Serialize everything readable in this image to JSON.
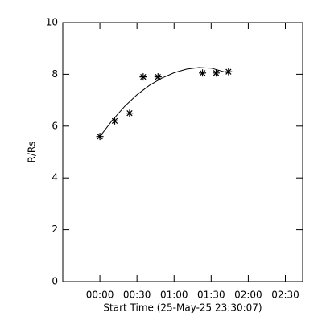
{
  "chart_data": {
    "type": "scatter",
    "xlabel": "Start Time (25-May-25 23:30:07)",
    "ylabel": "R/Rs",
    "x": [
      0,
      12,
      24,
      35,
      47,
      83,
      94,
      104
    ],
    "values": [
      5.6,
      6.2,
      6.5,
      7.9,
      7.9,
      8.05,
      8.05,
      8.1
    ],
    "fit": {
      "x": [
        0,
        10,
        20,
        30,
        40,
        50,
        60,
        70,
        80,
        90,
        104
      ],
      "values": [
        5.6,
        6.22,
        6.76,
        7.21,
        7.57,
        7.85,
        8.06,
        8.2,
        8.26,
        8.24,
        8.05
      ]
    },
    "color": "#000000",
    "xlim": [
      -30,
      164
    ],
    "ylim": [
      0,
      10
    ],
    "xticks": [
      {
        "value": 0,
        "label": "00:00"
      },
      {
        "value": 30,
        "label": "00:30"
      },
      {
        "value": 60,
        "label": "01:00"
      },
      {
        "value": 90,
        "label": "01:30"
      },
      {
        "value": 120,
        "label": "02:00"
      },
      {
        "value": 150,
        "label": "02:30"
      }
    ],
    "yticks": [
      0,
      2,
      4,
      6,
      8,
      10
    ]
  }
}
